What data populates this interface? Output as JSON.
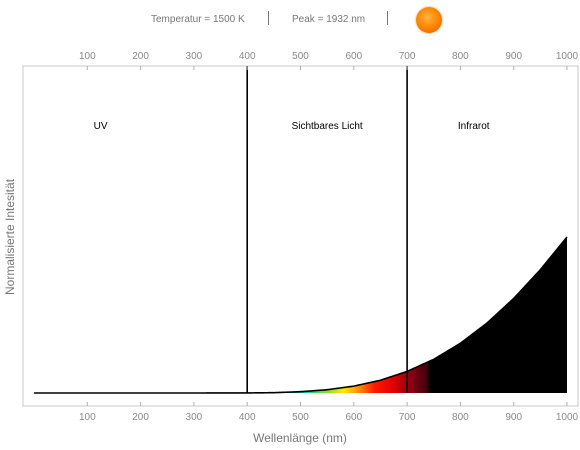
{
  "header": {
    "temperature_text": "Temperatur = 1500 K",
    "peak_text": "Peak = 1932 nm",
    "sun_icon": "sun-icon",
    "sun_color": "#ff8a00"
  },
  "chart_data": {
    "type": "area",
    "title": "",
    "xlabel": "Wellenlänge (nm)",
    "ylabel": "Normalisierte Intesität",
    "xlim": [
      0,
      1000
    ],
    "ylim": [
      0,
      1
    ],
    "x_ticks": [
      100,
      200,
      300,
      400,
      500,
      600,
      700,
      800,
      900,
      1000
    ],
    "top_axis_ticks": [
      100,
      200,
      300,
      400,
      500,
      600,
      700,
      800,
      900,
      1000
    ],
    "grid": false,
    "legend": "none",
    "temperature_K": 1500,
    "peak_nm": 1932,
    "boundaries": [
      400,
      700
    ],
    "regions": [
      {
        "label": "UV",
        "x": 125
      },
      {
        "label": "Sichtbares Licht",
        "x": 550
      },
      {
        "label": "Infrarot",
        "x": 825
      }
    ],
    "x": [
      0,
      300,
      400,
      450,
      500,
      550,
      600,
      650,
      700,
      750,
      800,
      850,
      900,
      950,
      1000
    ],
    "values": [
      0,
      0,
      0.0002,
      0.001,
      0.004,
      0.01,
      0.021,
      0.039,
      0.066,
      0.103,
      0.152,
      0.214,
      0.289,
      0.377,
      0.477
    ],
    "fill_color": "#000000"
  }
}
